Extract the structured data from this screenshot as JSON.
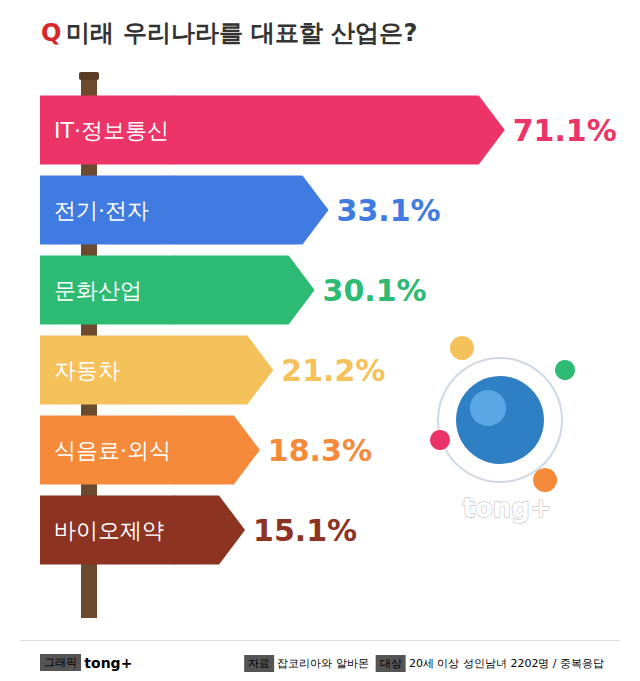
{
  "question_label": "Q",
  "watermark": "tong+",
  "footer": {
    "graphic_label": "그래픽",
    "graphic_by": "tong+",
    "source_label": "자료",
    "source": "잡코리아와 알바몬",
    "target_label": "대상",
    "target": "20세 이상 성인남녀 2202명",
    "note": "/ 중복응답"
  },
  "chart_data": {
    "type": "bar",
    "orientation": "horizontal",
    "title": "미래 우리나라를 대표할 산업은?",
    "categories": [
      "IT·정보통신",
      "전기·전자",
      "문화산업",
      "자동차",
      "식음료·외식",
      "바이오제약"
    ],
    "values": [
      71.1,
      33.1,
      30.1,
      21.2,
      18.3,
      15.1
    ],
    "value_labels": [
      "71.1%",
      "33.1%",
      "30.1%",
      "21.2%",
      "18.3%",
      "15.1%"
    ],
    "colors": [
      "#ec3468",
      "#3f7be0",
      "#2dbb73",
      "#f5c15a",
      "#f58a3a",
      "#8c3322"
    ],
    "xlim": [
      0,
      80
    ],
    "data_labels": true,
    "tick_labels": false,
    "grid": false
  }
}
